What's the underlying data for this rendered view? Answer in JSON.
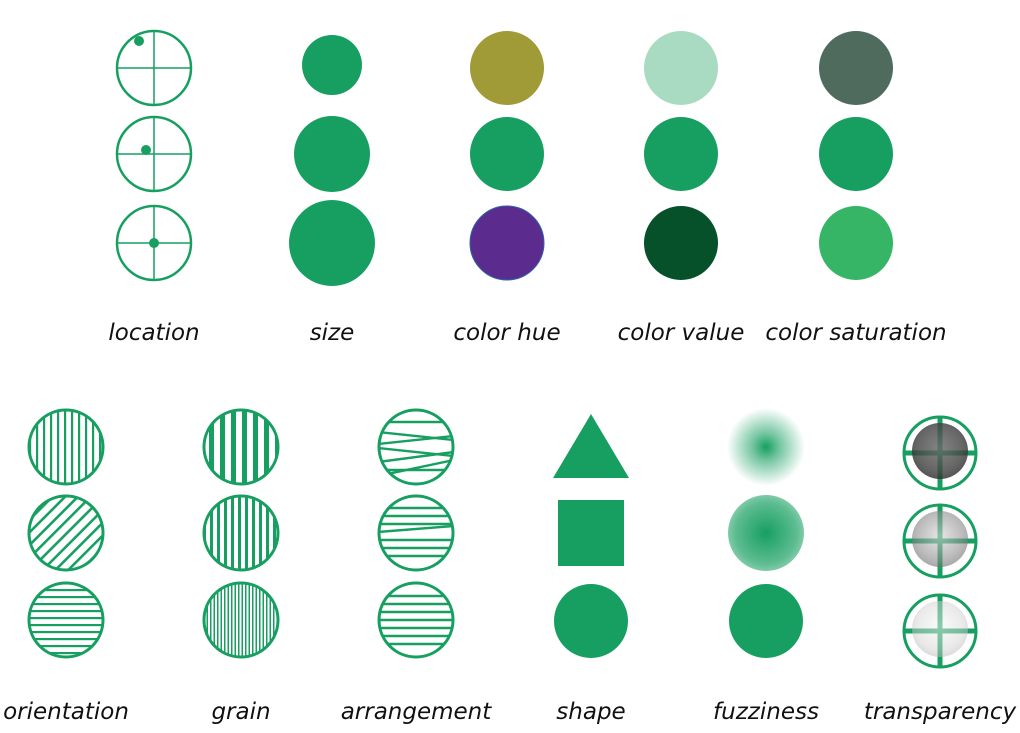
{
  "colors": {
    "green": "#179F61",
    "hue_olive": "#A09B36",
    "hue_purple": "#5B2C8E",
    "value_light": "#A9DBC2",
    "value_dark": "#06512A",
    "sat_low": "#4F6B5E",
    "sat_high": "#37B566"
  },
  "variables": [
    {
      "key": "location",
      "label": "location"
    },
    {
      "key": "size",
      "label": "size"
    },
    {
      "key": "color_hue",
      "label": "color hue"
    },
    {
      "key": "color_value",
      "label": "color value"
    },
    {
      "key": "color_saturation",
      "label": "color saturation"
    },
    {
      "key": "orientation",
      "label": "orientation"
    },
    {
      "key": "grain",
      "label": "grain"
    },
    {
      "key": "arrangement",
      "label": "arrangement"
    },
    {
      "key": "shape",
      "label": "shape"
    },
    {
      "key": "fuzziness",
      "label": "fuzziness"
    },
    {
      "key": "transparency",
      "label": "transparency"
    }
  ],
  "icons": {
    "location": "target-with-dot-icon",
    "size": "circle-icon",
    "shape": [
      "triangle-icon",
      "square-icon",
      "circle-icon"
    ]
  }
}
